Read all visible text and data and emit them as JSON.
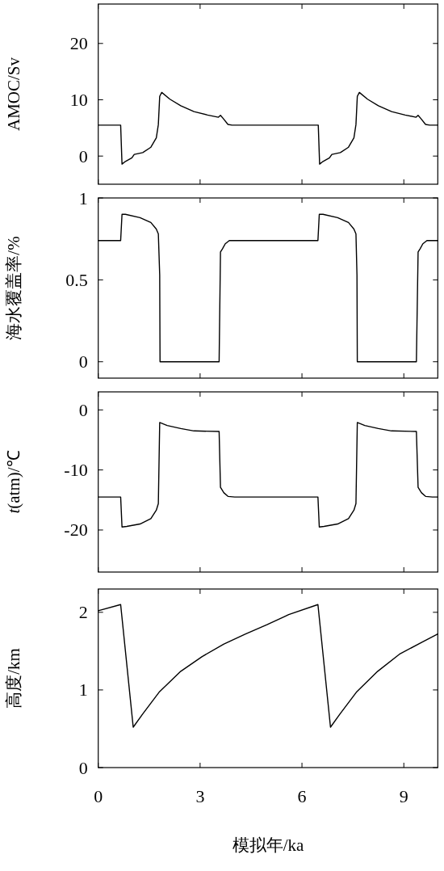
{
  "chart_data": [
    {
      "type": "line",
      "ylabel": "AMOC/Sv",
      "xlim": [
        0,
        10
      ],
      "xticks": [
        0,
        3,
        6,
        9
      ],
      "ylim": [
        -5,
        27
      ],
      "yticks": [
        0,
        10,
        20
      ],
      "tick_labels": "y",
      "x": [
        0,
        0.66,
        0.7,
        0.8,
        0.99,
        1.06,
        1.31,
        1.55,
        1.71,
        1.77,
        1.81,
        1.87,
        2.11,
        2.43,
        2.82,
        3.22,
        3.54,
        3.6,
        3.68,
        3.82,
        3.94,
        6.48,
        6.52,
        6.62,
        6.81,
        6.88,
        7.13,
        7.37,
        7.53,
        7.59,
        7.63,
        7.69,
        7.93,
        8.25,
        8.64,
        9.04,
        9.36,
        9.42,
        9.5,
        9.64,
        9.76,
        10
      ],
      "series": [
        {
          "color": "#000000",
          "values": [
            5.5,
            5.5,
            -1.43,
            -0.95,
            -0.33,
            0.29,
            0.62,
            1.57,
            3.24,
            5.6,
            10.6,
            11.3,
            10.1,
            8.95,
            7.9,
            7.29,
            6.9,
            7.24,
            6.67,
            5.62,
            5.5,
            5.5,
            -1.43,
            -0.95,
            -0.33,
            0.29,
            0.62,
            1.57,
            3.24,
            5.6,
            10.6,
            11.3,
            10.1,
            8.95,
            7.9,
            7.29,
            6.9,
            7.24,
            6.67,
            5.62,
            5.5,
            5.5
          ]
        }
      ]
    },
    {
      "type": "line",
      "ylabel": "海水覆盖率/%",
      "xlim": [
        0,
        10
      ],
      "xticks": [
        0,
        3,
        6,
        9
      ],
      "ylim": [
        -0.1,
        1
      ],
      "yticks": [
        0,
        0.5,
        1
      ],
      "tick_labels": "y",
      "x": [
        0,
        0.66,
        0.7,
        0.8,
        1.23,
        1.55,
        1.71,
        1.77,
        1.81,
        1.82,
        3.56,
        3.6,
        3.66,
        3.74,
        3.86,
        6.47,
        6.51,
        6.62,
        7.05,
        7.37,
        7.53,
        7.59,
        7.62,
        7.63,
        9.37,
        9.42,
        9.48,
        9.56,
        9.68,
        10
      ],
      "series": [
        {
          "color": "#000000",
          "values": [
            0.74,
            0.74,
            0.9,
            0.9,
            0.88,
            0.85,
            0.81,
            0.78,
            0.53,
            0,
            0,
            0.67,
            0.69,
            0.72,
            0.74,
            0.74,
            0.9,
            0.9,
            0.88,
            0.85,
            0.81,
            0.78,
            0.53,
            0,
            0,
            0.67,
            0.69,
            0.72,
            0.74,
            0.74
          ]
        }
      ]
    },
    {
      "type": "line",
      "ylabel": "*t*(atm)/℃",
      "xlim": [
        0,
        10
      ],
      "xticks": [
        0,
        3,
        6,
        9
      ],
      "ylim": [
        -27,
        3
      ],
      "yticks": [
        -20,
        -10,
        0
      ],
      "tick_labels": "y",
      "x": [
        0,
        0.66,
        0.7,
        0.84,
        1.23,
        1.55,
        1.71,
        1.77,
        1.81,
        2.03,
        2.43,
        2.82,
        3.56,
        3.6,
        3.7,
        3.82,
        4.02,
        6.47,
        6.51,
        6.65,
        7.05,
        7.37,
        7.53,
        7.59,
        7.63,
        7.85,
        8.25,
        8.64,
        9.37,
        9.42,
        9.52,
        9.64,
        9.84,
        10
      ],
      "series": [
        {
          "color": "#000000",
          "values": [
            -14.5,
            -14.5,
            -19.5,
            -19.4,
            -19.0,
            -18.1,
            -16.7,
            -15.6,
            -2.1,
            -2.6,
            -3.1,
            -3.5,
            -3.6,
            -12.9,
            -13.8,
            -14.4,
            -14.5,
            -14.5,
            -19.5,
            -19.4,
            -19.0,
            -18.1,
            -16.7,
            -15.6,
            -2.1,
            -2.6,
            -3.1,
            -3.5,
            -3.6,
            -12.9,
            -13.8,
            -14.4,
            -14.5,
            -14.5
          ]
        }
      ]
    },
    {
      "type": "line",
      "ylabel": "高度/km",
      "xlabel": "模拟年/ka",
      "xlim": [
        0,
        10
      ],
      "xticks": [
        0,
        3,
        6,
        9
      ],
      "ylim": [
        0,
        2.3
      ],
      "yticks": [
        0,
        1,
        2
      ],
      "x": [
        0,
        0.66,
        1.03,
        1.31,
        1.79,
        2.43,
        3.06,
        3.7,
        4.34,
        4.97,
        5.61,
        6.47,
        6.84,
        7.12,
        7.6,
        8.23,
        8.87,
        9.51,
        10
      ],
      "series": [
        {
          "color": "#000000",
          "values": [
            2.02,
            2.1,
            0.52,
            0.69,
            0.97,
            1.24,
            1.43,
            1.59,
            1.72,
            1.84,
            1.97,
            2.1,
            0.52,
            0.69,
            0.97,
            1.24,
            1.46,
            1.61,
            1.72
          ]
        }
      ]
    }
  ]
}
